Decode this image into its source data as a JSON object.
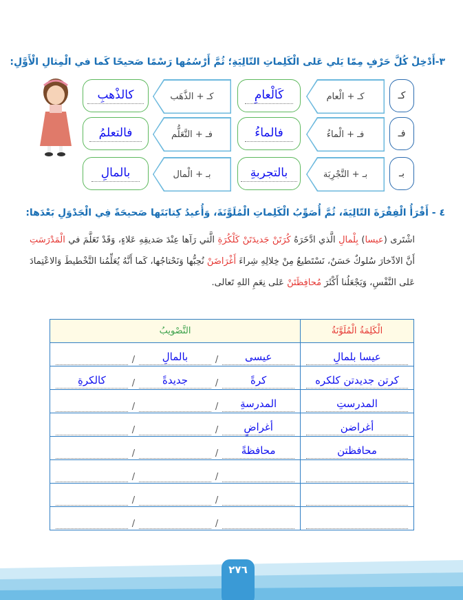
{
  "exercise3": {
    "heading": "٣-أَدْخِلْ كُلَّ حَرْفٍ مِمّا يَلي عَلى الْكَلِماتِ التّالِيَةِ؛ ثُمَّ أَرْسُمُها رَسْمًا صَحيحًا كَما في الْمِثالِ الْأَوَّلِ:",
    "rows": [
      {
        "letter": "كـ",
        "items": [
          {
            "prompt": "كـ + الْعام",
            "answer": "كَالْعامِ"
          },
          {
            "prompt": "كـ + الذَّهَب",
            "answer": "كالذْهبِ"
          }
        ]
      },
      {
        "letter": "فـ",
        "items": [
          {
            "prompt": "فـ + الْماءُ",
            "answer": "فالماءُ"
          },
          {
            "prompt": "فـ + التَّعَلُّم",
            "answer": "فالتعلمُ"
          }
        ]
      },
      {
        "letter": "بـ",
        "items": [
          {
            "prompt": "بـ + التَّجْرِبَة",
            "answer": "بالتجربةِ"
          },
          {
            "prompt": "بـ + الْمال",
            "answer": "بالمالِ"
          }
        ]
      }
    ]
  },
  "exercise4": {
    "heading": "٤ - أَقْرَأُ الْفِقْرَةَ التّالِيَةَ، ثُمَّ أُصَوِّبُ الْكَلِماتِ الْمُلَوَّنَةَ، وَأُعيدُ كِتابَتَها صَحيحَةً فِي الْجَدْوَلِ بَعْدَها:",
    "paragraph": [
      {
        "t": "اشْتَرى ("
      },
      {
        "t": "عيسا",
        "c": "red"
      },
      {
        "t": ") "
      },
      {
        "t": "بِلْمالِ",
        "c": "red"
      },
      {
        "t": " الَّذي ادَّخَرَهُ "
      },
      {
        "t": "كُرَتَنْ جَديدَتَنْ كَلْكُرَةِ",
        "c": "red"
      },
      {
        "t": " الَّتي رَآها عِنْدَ صَديقِهِ عَلاءٍ، وَقَدْ تَعَلَّمَ في "
      },
      {
        "t": "الْمَدْرَسَتِ",
        "c": "red"
      },
      {
        "t": " أَنَّ الادِّخارَ سُلوكٌ حَسَنٌ، نَسْتَطيعُ مِنْ خِلالِهِ شِراءَ "
      },
      {
        "t": "أَغْرَاضَنْ",
        "c": "red"
      },
      {
        "t": " نُحِبُّها وَنَحْتاجُها، كَما أَنَّهُ يُعَلِّمُنا التَّخْطيطَ وَالاعْتِمادَ عَلى النَّفْسِ، وَيَجْعَلُنا أَكْثَرَ "
      },
      {
        "t": "مُحافِظَتَنْ",
        "c": "red"
      },
      {
        "t": " عَلى نِعَمِ اللهِ تَعالى."
      }
    ],
    "table": {
      "headers": [
        "الْكَلِمَةُ الْمُلَوَّنَةُ",
        "التَّصْويبُ"
      ],
      "rows": [
        {
          "word": "عيسا بلمالِ",
          "fix": [
            "عيسى",
            "بالمالِ",
            ""
          ]
        },
        {
          "word": "كرتن جديدتن كلكره",
          "fix": [
            "كرةً",
            "جديدةً",
            "كالكرةِ"
          ]
        },
        {
          "word": "المدرستِ",
          "fix": [
            "المدرسةِ",
            "",
            ""
          ]
        },
        {
          "word": "أغراضن",
          "fix": [
            "أغراضٍ",
            "",
            ""
          ]
        },
        {
          "word": "محافظتن",
          "fix": [
            "محافظةً",
            "",
            ""
          ]
        },
        {
          "word": "",
          "fix": [
            "",
            "",
            ""
          ]
        },
        {
          "word": "",
          "fix": [
            "",
            "",
            ""
          ]
        },
        {
          "word": "",
          "fix": [
            "",
            "",
            ""
          ]
        }
      ]
    }
  },
  "footer": {
    "page_number": "٢٧٦"
  },
  "colors": {
    "heading": "#1a6fb5",
    "error": "#e53935",
    "answer": "#1010ee",
    "table_border": "#2f7ec4",
    "header_bg": "#fffbe6",
    "footer_band": "#9fd4ee",
    "page_tab": "#3a9ad6"
  }
}
